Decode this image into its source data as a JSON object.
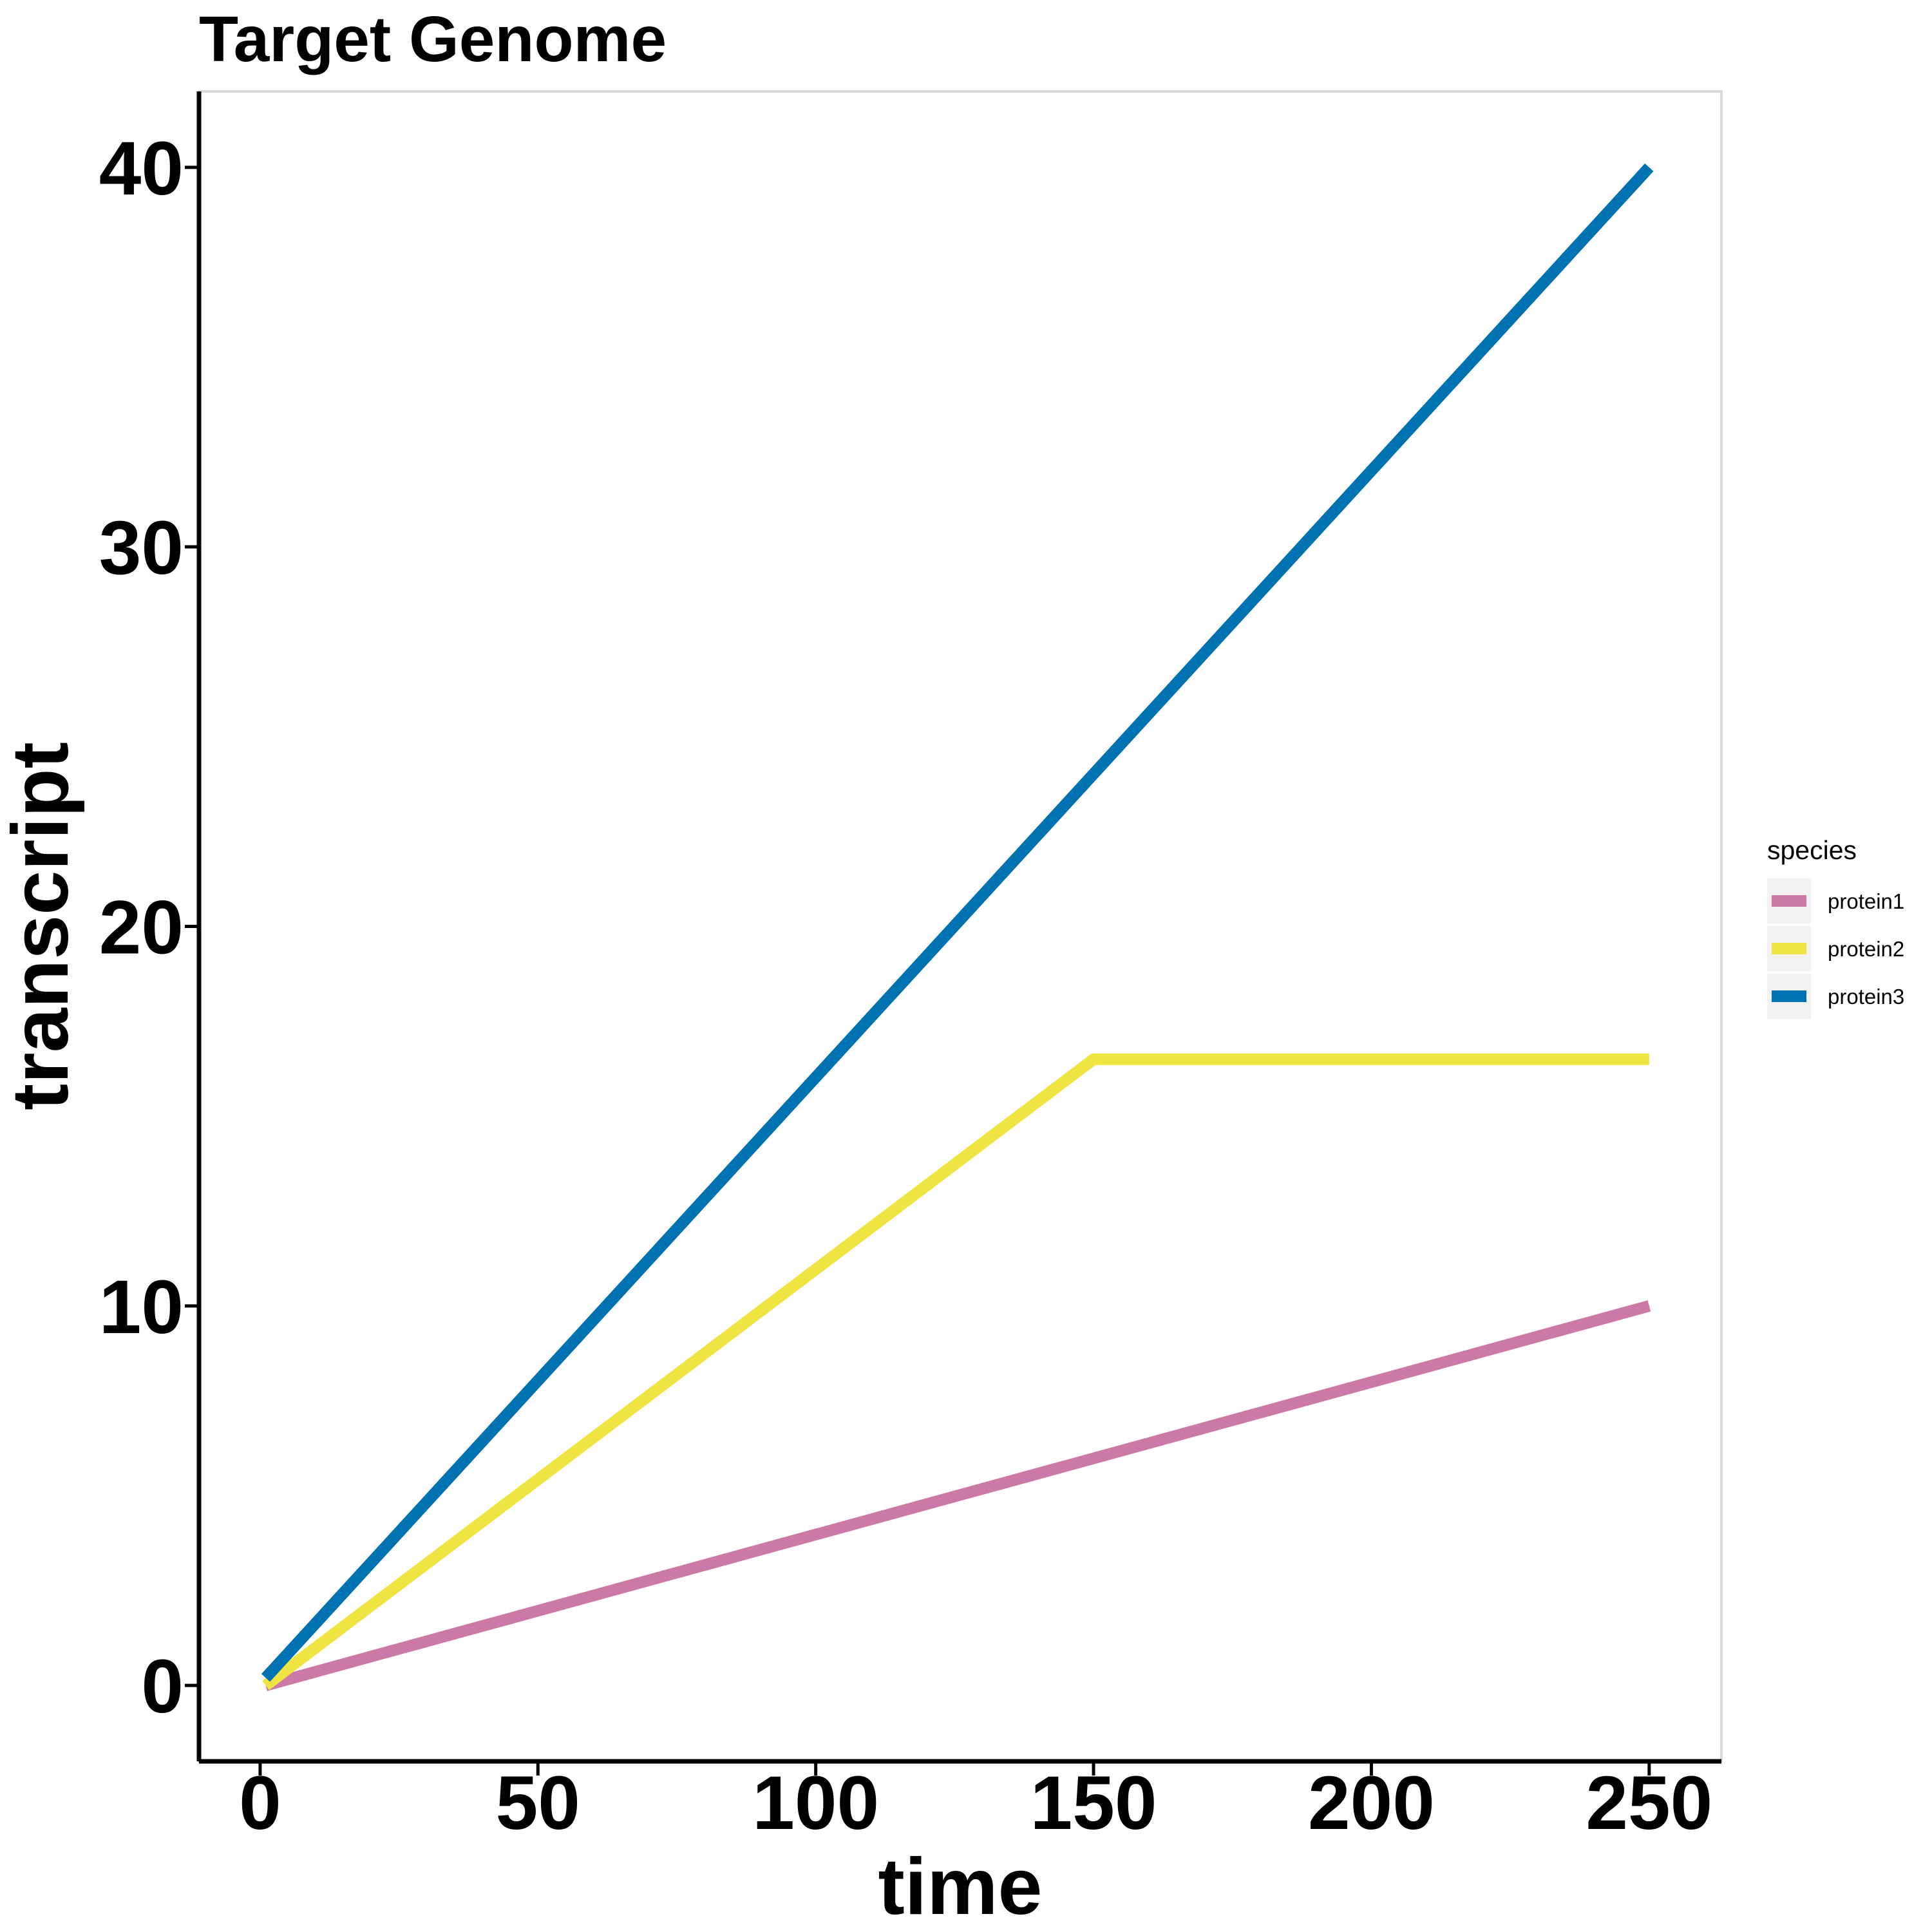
{
  "chart_data": {
    "type": "line",
    "title": "Target Genome",
    "xlabel": "time",
    "ylabel": "transcript",
    "xlim": [
      -11,
      263
    ],
    "ylim": [
      -2,
      42
    ],
    "xticks": [
      0,
      50,
      100,
      150,
      200,
      250
    ],
    "yticks": [
      0,
      10,
      20,
      30,
      40
    ],
    "grid": false,
    "legend": {
      "title": "species",
      "placement": "right"
    },
    "series": [
      {
        "name": "protein1",
        "color": "#CC79A7",
        "x": [
          1,
          250
        ],
        "y": [
          0,
          10
        ]
      },
      {
        "name": "protein2",
        "color": "#F0E442",
        "x": [
          1,
          150,
          250
        ],
        "y": [
          0,
          16.5,
          16.5
        ]
      },
      {
        "name": "protein3",
        "color": "#0072B2",
        "x": [
          1,
          250
        ],
        "y": [
          0.2,
          40
        ]
      }
    ]
  }
}
